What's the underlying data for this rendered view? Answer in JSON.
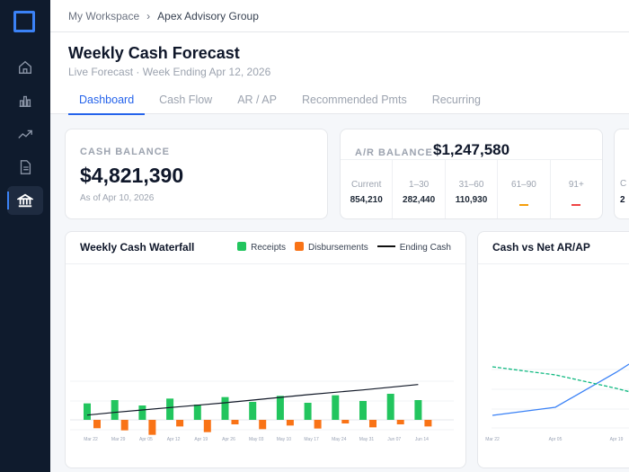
{
  "sidebar": {
    "items": [
      {
        "icon": "home-icon"
      },
      {
        "icon": "bar-chart-icon"
      },
      {
        "icon": "trending-up-icon"
      },
      {
        "icon": "document-icon"
      },
      {
        "icon": "bank-icon",
        "active": true
      }
    ]
  },
  "breadcrumb": {
    "root": "My Workspace",
    "sep": "›",
    "current": "Apex Advisory Group"
  },
  "header": {
    "title": "Weekly Cash Forecast",
    "subtitle": "Live Forecast · Week Ending Apr 12, 2026"
  },
  "tabs": [
    {
      "label": "Dashboard",
      "active": true
    },
    {
      "label": "Cash Flow"
    },
    {
      "label": "AR / AP"
    },
    {
      "label": "Recommended Pmts"
    },
    {
      "label": "Recurring"
    }
  ],
  "cash_balance": {
    "label": "CASH BALANCE",
    "value": "$4,821,390",
    "asof": "As of Apr 10, 2026"
  },
  "ar_balance": {
    "label": "A/R BALANCE",
    "value": "$1,247,580",
    "aging": [
      {
        "label": "Current",
        "value": "854,210"
      },
      {
        "label": "1–30",
        "value": "282,440"
      },
      {
        "label": "31–60",
        "value": "110,930"
      },
      {
        "label": "61–90",
        "value": "—",
        "color": "#f59e0b"
      },
      {
        "label": "91+",
        "value": "—",
        "color": "#ef4444"
      }
    ]
  },
  "third_card": {
    "row_label": "C",
    "row_value": "2"
  },
  "colors": {
    "receipts": "#22c55e",
    "disbursements": "#f97316",
    "ending_cash": "#111827",
    "accent": "#2563eb",
    "cash_line": "#3b82f6",
    "net_arap": "#10b981"
  },
  "chart_data": [
    {
      "type": "bar",
      "title": "Weekly Cash Waterfall",
      "legend_placement": "top-right",
      "grid": true,
      "categories": [
        "Mar 22",
        "Mar 29",
        "Apr 05",
        "Apr 12",
        "Apr 19",
        "Apr 26",
        "May 03",
        "May 10",
        "May 17",
        "May 24",
        "May 31",
        "Jun 07",
        "Jun 14"
      ],
      "series": [
        {
          "name": "Receipts",
          "type": "bar",
          "values": [
            55,
            66,
            48,
            71,
            51,
            76,
            60,
            80,
            57,
            82,
            63,
            87,
            66
          ]
        },
        {
          "name": "Disbursements",
          "type": "bar",
          "values": [
            -28,
            -35,
            -50,
            -22,
            -41,
            -15,
            -31,
            -19,
            -29,
            -12,
            -25,
            -15,
            -22
          ]
        },
        {
          "name": "Ending Cash",
          "type": "line",
          "values": [
            16,
            25,
            33,
            41,
            49,
            57,
            66,
            75,
            84,
            92,
            100,
            109,
            118
          ]
        }
      ]
    },
    {
      "type": "line",
      "title": "Cash vs Net AR/AP",
      "grid": true,
      "categories": [
        "Mar 22",
        "Apr 05",
        "Apr 19"
      ],
      "series": [
        {
          "values": [
            30,
            45,
            110
          ],
          "style": "solid"
        },
        {
          "values": [
            120,
            105,
            80
          ],
          "style": "dashed"
        }
      ]
    }
  ]
}
